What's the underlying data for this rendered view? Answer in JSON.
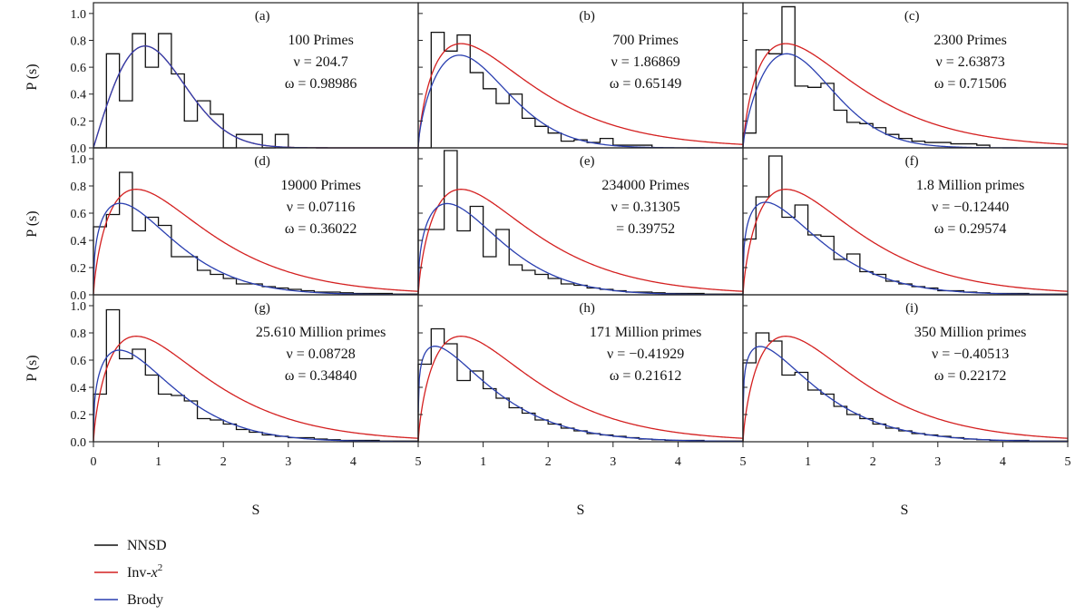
{
  "legend": {
    "nnsd": "NNSD",
    "inv_prefix": "Inv-",
    "inv_var": "x",
    "inv_exp": "2",
    "brody": "Brody"
  },
  "colors": {
    "nnsd": "#111111",
    "inv": "#d42020",
    "brody": "#2a3fb0",
    "frame": "#222222"
  },
  "axis": {
    "ylabel": "P (s)",
    "xlabel": "S",
    "yticks": [
      "0.0",
      "0.2",
      "0.4",
      "0.6",
      "0.8",
      "1.0"
    ],
    "xticks": [
      "0",
      "1",
      "2",
      "3",
      "4",
      "5"
    ]
  },
  "chart_data": {
    "type": "line",
    "x_range": [
      0,
      5
    ],
    "y_range": [
      0,
      1.08
    ],
    "bin_width": 0.2,
    "panels": [
      {
        "id": "a",
        "label": "(a)",
        "lines": [
          "100 Primes",
          "ν = 204.7",
          "ω = 0.98986"
        ],
        "nu": 204.7,
        "omega": 0.98986,
        "histogram": [
          0.0,
          0.7,
          0.35,
          0.85,
          0.6,
          0.85,
          0.55,
          0.2,
          0.35,
          0.25,
          0.0,
          0.1,
          0.1,
          0.0,
          0.1
        ]
      },
      {
        "id": "b",
        "label": "(b)",
        "lines": [
          "700 Primes",
          "ν = 1.86869",
          "ω = 0.65149"
        ],
        "nu": 1.86869,
        "omega": 0.65149,
        "histogram": [
          0.0,
          0.86,
          0.72,
          0.84,
          0.56,
          0.44,
          0.33,
          0.4,
          0.22,
          0.16,
          0.11,
          0.05,
          0.06,
          0.04,
          0.07,
          0.02,
          0.02,
          0.02
        ]
      },
      {
        "id": "c",
        "label": "(c)",
        "lines": [
          "2300 Primes",
          "ν = 2.63873",
          "ω = 0.71506"
        ],
        "nu": 2.63873,
        "omega": 0.71506,
        "histogram": [
          0.11,
          0.73,
          0.7,
          1.05,
          0.46,
          0.45,
          0.48,
          0.28,
          0.19,
          0.18,
          0.15,
          0.1,
          0.07,
          0.05,
          0.04,
          0.04,
          0.03,
          0.03,
          0.02
        ]
      },
      {
        "id": "d",
        "label": "(d)",
        "lines": [
          "19000 Primes",
          "ν = 0.07116",
          "ω = 0.36022"
        ],
        "nu": 0.07116,
        "omega": 0.36022,
        "histogram": [
          0.5,
          0.59,
          0.9,
          0.47,
          0.57,
          0.51,
          0.28,
          0.28,
          0.18,
          0.15,
          0.12,
          0.08,
          0.08,
          0.06,
          0.05,
          0.04,
          0.03,
          0.02,
          0.02,
          0.015,
          0.01,
          0.01,
          0.01,
          0.005,
          0.005
        ]
      },
      {
        "id": "e",
        "label": "(e)",
        "lines": [
          "234000 Primes",
          "ν = 0.31305",
          "= 0.39752"
        ],
        "nu": 0.31305,
        "omega": 0.39752,
        "histogram": [
          0.48,
          0.48,
          1.06,
          0.47,
          0.65,
          0.28,
          0.48,
          0.22,
          0.18,
          0.15,
          0.12,
          0.08,
          0.07,
          0.05,
          0.04,
          0.03,
          0.02,
          0.02,
          0.015,
          0.01,
          0.01,
          0.01,
          0.005,
          0.005,
          0.005
        ]
      },
      {
        "id": "f",
        "label": "(f)",
        "lines": [
          "1.8 Million primes",
          "ν = −0.12440",
          "ω = 0.29574"
        ],
        "nu": -0.1244,
        "omega": 0.29574,
        "histogram": [
          0.41,
          0.72,
          1.02,
          0.57,
          0.66,
          0.44,
          0.43,
          0.26,
          0.3,
          0.17,
          0.15,
          0.1,
          0.08,
          0.06,
          0.05,
          0.03,
          0.03,
          0.02,
          0.015,
          0.01,
          0.01,
          0.01,
          0.005,
          0.005,
          0.005
        ]
      },
      {
        "id": "g",
        "label": "(g)",
        "lines": [
          "25.610 Million primes",
          "ν = 0.08728",
          "ω = 0.34840"
        ],
        "nu": 0.08728,
        "omega": 0.3484,
        "histogram": [
          0.35,
          0.97,
          0.61,
          0.68,
          0.49,
          0.35,
          0.34,
          0.3,
          0.17,
          0.16,
          0.13,
          0.09,
          0.07,
          0.05,
          0.04,
          0.03,
          0.03,
          0.02,
          0.015,
          0.01,
          0.01,
          0.01,
          0.005,
          0.005,
          0.005
        ]
      },
      {
        "id": "h",
        "label": "(h)",
        "lines": [
          "171 Million primes",
          "ν = −0.41929",
          "ω = 0.21612"
        ],
        "nu": -0.41929,
        "omega": 0.21612,
        "histogram": [
          0.57,
          0.83,
          0.72,
          0.45,
          0.52,
          0.39,
          0.32,
          0.25,
          0.21,
          0.16,
          0.13,
          0.1,
          0.08,
          0.06,
          0.05,
          0.04,
          0.03,
          0.02,
          0.015,
          0.01,
          0.01,
          0.01,
          0.005,
          0.005,
          0.005
        ]
      },
      {
        "id": "i",
        "label": "(i)",
        "lines": [
          "350 Million primes",
          "ν = −0.40513",
          "ω = 0.22172"
        ],
        "nu": -0.40513,
        "omega": 0.22172,
        "histogram": [
          0.58,
          0.8,
          0.74,
          0.49,
          0.51,
          0.38,
          0.35,
          0.26,
          0.2,
          0.17,
          0.13,
          0.1,
          0.08,
          0.06,
          0.05,
          0.04,
          0.03,
          0.02,
          0.015,
          0.01,
          0.01,
          0.01,
          0.005,
          0.005,
          0.005
        ]
      }
    ]
  }
}
